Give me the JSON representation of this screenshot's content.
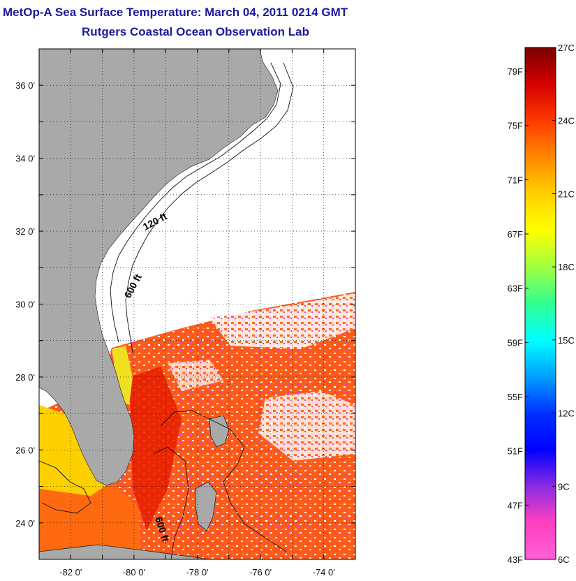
{
  "title": "MetOp-A Sea Surface Temperature:  March 04, 2011 0214 GMT",
  "subtitle": "Rutgers Coastal Ocean Observation Lab",
  "map": {
    "lat_ticks": [
      "36 0'",
      "34 0'",
      "32 0'",
      "30 0'",
      "28 0'",
      "26 0'",
      "24 0'"
    ],
    "lat_values": [
      36,
      34,
      32,
      30,
      28,
      26,
      24
    ],
    "lon_ticks": [
      "-82 0'",
      "-80 0'",
      "-78 0'",
      "-76 0'",
      "-74 0'"
    ],
    "lon_values": [
      -82,
      -80,
      -78,
      -76,
      -74
    ],
    "lon_range": [
      -83.0,
      -73.0
    ],
    "lat_range": [
      23.0,
      37.0
    ],
    "contour_labels": [
      "120 ft",
      "600 ft",
      "600 ft"
    ],
    "land_color": "#a9a9a9",
    "grid": "dotted"
  },
  "colorbar": {
    "f_labels": [
      "79F",
      "75F",
      "71F",
      "67F",
      "63F",
      "59F",
      "55F",
      "51F",
      "47F",
      "43F"
    ],
    "c_labels": [
      "27C",
      "24C",
      "21C",
      "18C",
      "15C",
      "12C",
      "9C",
      "6C"
    ],
    "stops": [
      "#7a0000",
      "#d40000",
      "#ff3a00",
      "#ff8800",
      "#ffd000",
      "#ffff00",
      "#a0ff40",
      "#30ff90",
      "#00ffff",
      "#00a0ff",
      "#0030ff",
      "#0000ff",
      "#8a2be2",
      "#ff40c0",
      "#ff60d8"
    ]
  }
}
